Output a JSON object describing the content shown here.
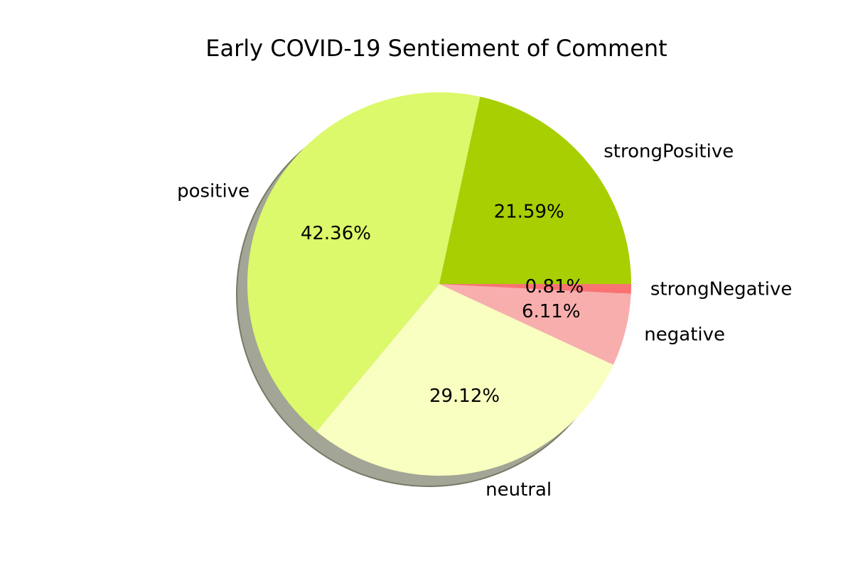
{
  "chart_data": {
    "type": "pie",
    "title": "Early COVID-19 Sentiement of Comment",
    "slices": [
      {
        "label": "strongPositive",
        "value": 21.59,
        "pct_label": "21.59%",
        "color": "#a8cf02"
      },
      {
        "label": "positive",
        "value": 42.36,
        "pct_label": "42.36%",
        "color": "#dbf96a"
      },
      {
        "label": "neutral",
        "value": 29.12,
        "pct_label": "29.12%",
        "color": "#f9ffc0"
      },
      {
        "label": "negative",
        "value": 6.11,
        "pct_label": "6.11%",
        "color": "#f9aeae"
      },
      {
        "label": "strongNegative",
        "value": 0.81,
        "pct_label": "0.81%",
        "color": "#f97373"
      }
    ],
    "start_angle_deg": 0,
    "direction": "counterclockwise",
    "shadow": true,
    "shadow_color": "#a3a596",
    "legend": "none"
  }
}
